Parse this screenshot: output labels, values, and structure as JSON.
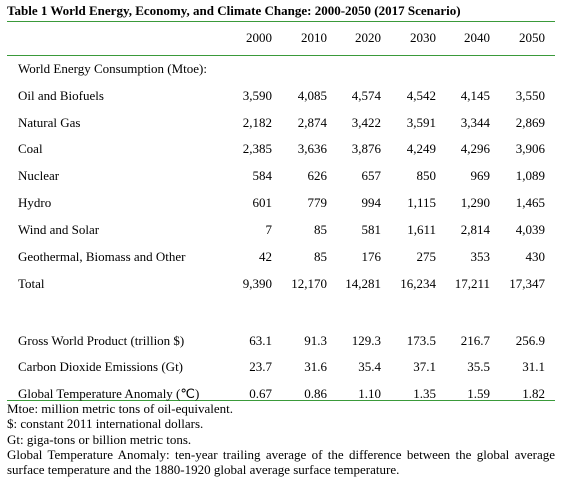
{
  "table": {
    "title": "Table 1 World Energy, Economy, and Climate Change: 2000-2050 (2017 Scenario)",
    "columns": [
      "2000",
      "2010",
      "2020",
      "2030",
      "2040",
      "2050"
    ],
    "section_label": "World Energy Consumption (Mtoe):",
    "energy_rows": [
      {
        "label": "Oil and Biofuels",
        "values": [
          "3,590",
          "4,085",
          "4,574",
          "4,542",
          "4,145",
          "3,550"
        ]
      },
      {
        "label": "Natural Gas",
        "values": [
          "2,182",
          "2,874",
          "3,422",
          "3,591",
          "3,344",
          "2,869"
        ]
      },
      {
        "label": "Coal",
        "values": [
          "2,385",
          "3,636",
          "3,876",
          "4,249",
          "4,296",
          "3,906"
        ]
      },
      {
        "label": "Nuclear",
        "values": [
          "584",
          "626",
          "657",
          "850",
          "969",
          "1,089"
        ]
      },
      {
        "label": "Hydro",
        "values": [
          "601",
          "779",
          "994",
          "1,115",
          "1,290",
          "1,465"
        ]
      },
      {
        "label": "Wind and Solar",
        "values": [
          "7",
          "85",
          "581",
          "1,611",
          "2,814",
          "4,039"
        ]
      },
      {
        "label": "Geothermal, Biomass and Other",
        "values": [
          "42",
          "85",
          "176",
          "275",
          "353",
          "430"
        ]
      },
      {
        "label": "Total",
        "values": [
          "9,390",
          "12,170",
          "14,281",
          "16,234",
          "17,211",
          "17,347"
        ]
      }
    ],
    "economy_rows": [
      {
        "label": "Gross World Product (trillion $)",
        "values": [
          "63.1",
          "91.3",
          "129.3",
          "173.5",
          "216.7",
          "256.9"
        ]
      },
      {
        "label": "Carbon Dioxide Emissions (Gt)",
        "values": [
          "23.7",
          "31.6",
          "35.4",
          "37.1",
          "35.5",
          "31.1"
        ]
      },
      {
        "label": "Global Temperature Anomaly (℃)",
        "values": [
          "0.67",
          "0.86",
          "1.10",
          "1.35",
          "1.59",
          "1.82"
        ]
      }
    ],
    "notes": [
      "Mtoe: million metric tons of oil-equivalent.",
      "$: constant 2011 international dollars.",
      "Gt: giga-tons or billion metric tons.",
      "Global Temperature Anomaly: ten-year trailing average of the difference between the global average surface temperature and the 1880-1920 global average surface temperature."
    ]
  }
}
